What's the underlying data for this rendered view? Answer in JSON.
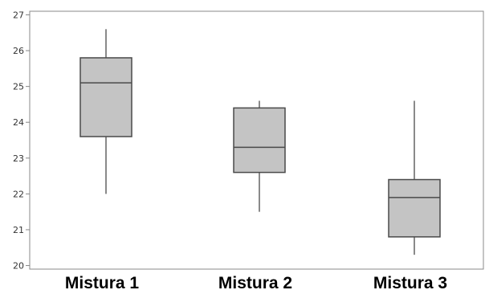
{
  "chart_data": {
    "type": "boxplot",
    "title": "",
    "xlabel": "",
    "ylabel": "",
    "categories": [
      "Mistura 1",
      "Mistura 2",
      "Mistura 3"
    ],
    "boxes": [
      {
        "category": "Mistura 1",
        "min": 22.0,
        "q1": 23.6,
        "median": 25.1,
        "q3": 25.8,
        "max": 26.6
      },
      {
        "category": "Mistura 2",
        "min": 21.5,
        "q1": 22.6,
        "median": 23.3,
        "q3": 24.4,
        "max": 24.6
      },
      {
        "category": "Mistura 3",
        "min": 20.3,
        "q1": 20.8,
        "median": 21.9,
        "q3": 22.4,
        "max": 24.6
      }
    ],
    "yticks": [
      20,
      21,
      22,
      23,
      24,
      25,
      26,
      27
    ],
    "ylim": [
      19.9,
      27.1
    ],
    "grid": false,
    "colors": {
      "box_fill": "#c4c4c4",
      "box_stroke": "#4a4a4a",
      "frame": "#888888"
    }
  }
}
